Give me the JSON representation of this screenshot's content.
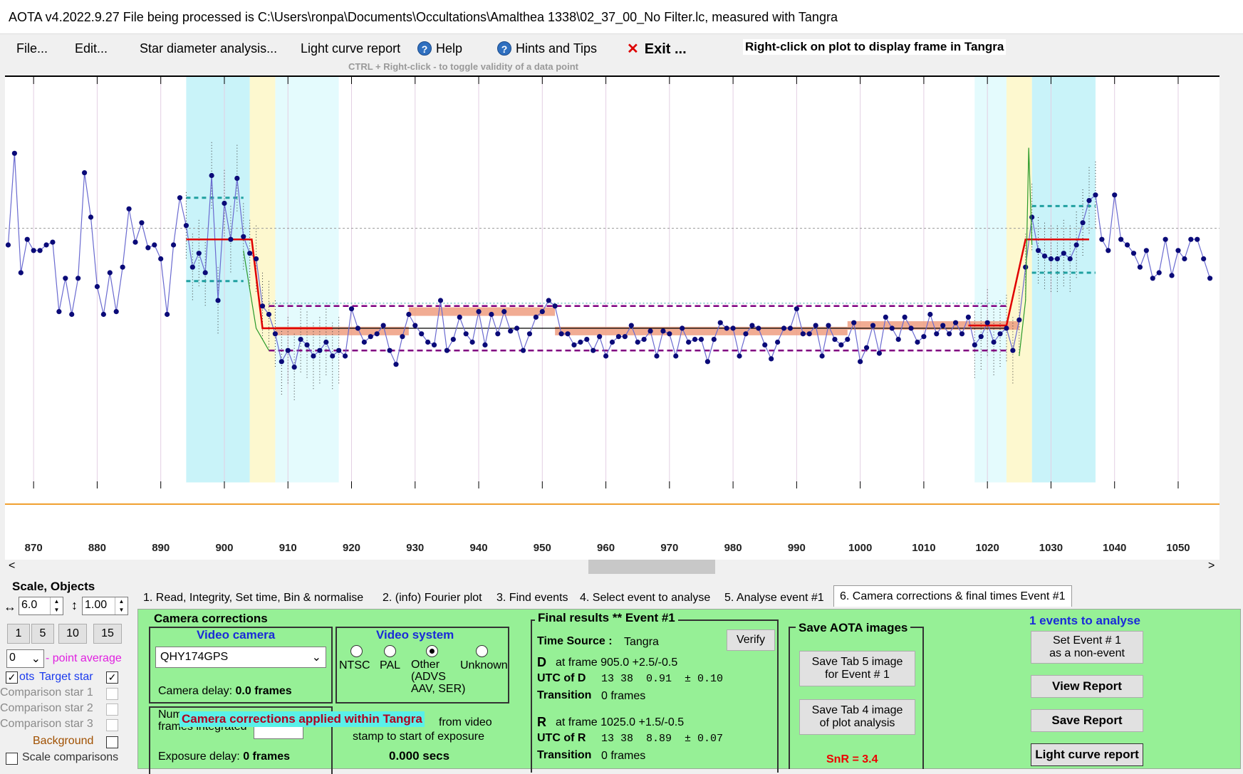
{
  "title": "AOTA v4.2022.9.27     File being processed is C:\\Users\\ronpa\\Documents\\Occultations\\Amalthea 1338\\02_37_00_No Filter.lc, measured with Tangra",
  "menu": {
    "file": "File...",
    "edit": "Edit...",
    "star_diameter": "Star diameter analysis...",
    "light_curve_report": "Light curve report",
    "help": "Help",
    "hints": "Hints and Tips",
    "exit": "Exit ...",
    "right_click_hint": "Right-click on plot to display frame in Tangra",
    "ctrl_hint": "CTRL + Right-click  -  to toggle validity of a data point"
  },
  "plot": {
    "x_ticks": [
      870,
      880,
      890,
      900,
      910,
      920,
      930,
      940,
      950,
      960,
      970,
      980,
      990,
      1000,
      1010,
      1020,
      1030,
      1040,
      1050
    ],
    "x_min": 865.5,
    "x_max": 1056.5,
    "y_min": 0,
    "y_max": 100,
    "cyan_bands": [
      [
        894,
        904
      ],
      [
        908,
        918
      ],
      [
        1018,
        1023
      ],
      [
        1027,
        1037
      ]
    ],
    "yellow_bands": [
      [
        904,
        908
      ],
      [
        1023,
        1027
      ]
    ],
    "baseline_level": 62,
    "event_level": 30,
    "orange_line_level": -40,
    "points": [
      [
        866,
        60
      ],
      [
        867,
        93
      ],
      [
        868,
        50
      ],
      [
        869,
        62
      ],
      [
        870,
        58
      ],
      [
        871,
        58
      ],
      [
        872,
        60
      ],
      [
        873,
        61
      ],
      [
        874,
        36
      ],
      [
        875,
        48
      ],
      [
        876,
        35
      ],
      [
        877,
        48
      ],
      [
        878,
        86
      ],
      [
        879,
        70
      ],
      [
        880,
        45
      ],
      [
        881,
        35
      ],
      [
        882,
        50
      ],
      [
        883,
        36
      ],
      [
        884,
        52
      ],
      [
        885,
        73
      ],
      [
        886,
        61
      ],
      [
        887,
        68
      ],
      [
        888,
        59
      ],
      [
        889,
        60
      ],
      [
        890,
        55
      ],
      [
        891,
        35
      ],
      [
        892,
        60
      ],
      [
        893,
        77
      ],
      [
        894,
        67
      ],
      [
        895,
        52
      ],
      [
        896,
        57
      ],
      [
        897,
        50
      ],
      [
        898,
        85
      ],
      [
        899,
        40
      ],
      [
        900,
        75
      ],
      [
        901,
        62
      ],
      [
        902,
        84
      ],
      [
        903,
        63
      ],
      [
        904,
        57
      ],
      [
        905,
        55
      ],
      [
        906,
        38
      ],
      [
        907,
        35
      ],
      [
        908,
        28
      ],
      [
        909,
        18
      ],
      [
        910,
        22
      ],
      [
        911,
        16
      ],
      [
        912,
        26
      ],
      [
        913,
        24
      ],
      [
        914,
        20
      ],
      [
        915,
        22
      ],
      [
        916,
        25
      ],
      [
        917,
        20
      ],
      [
        918,
        22
      ],
      [
        919,
        20
      ],
      [
        920,
        37
      ],
      [
        921,
        30
      ],
      [
        922,
        25
      ],
      [
        923,
        27
      ],
      [
        924,
        28
      ],
      [
        925,
        31
      ],
      [
        926,
        22
      ],
      [
        927,
        17
      ],
      [
        928,
        27
      ],
      [
        929,
        35
      ],
      [
        930,
        31
      ],
      [
        931,
        28
      ],
      [
        932,
        25
      ],
      [
        933,
        24
      ],
      [
        934,
        40
      ],
      [
        935,
        22
      ],
      [
        936,
        26
      ],
      [
        937,
        34
      ],
      [
        938,
        28
      ],
      [
        939,
        25
      ],
      [
        940,
        36
      ],
      [
        941,
        24
      ],
      [
        942,
        35
      ],
      [
        943,
        28
      ],
      [
        944,
        36
      ],
      [
        945,
        29
      ],
      [
        946,
        30
      ],
      [
        947,
        22
      ],
      [
        948,
        28
      ],
      [
        949,
        34
      ],
      [
        950,
        36
      ],
      [
        951,
        40
      ],
      [
        952,
        38
      ],
      [
        953,
        28
      ],
      [
        954,
        28
      ],
      [
        955,
        24
      ],
      [
        956,
        25
      ],
      [
        957,
        26
      ],
      [
        958,
        22
      ],
      [
        959,
        27
      ],
      [
        960,
        20
      ],
      [
        961,
        25
      ],
      [
        962,
        27
      ],
      [
        963,
        27
      ],
      [
        964,
        31
      ],
      [
        965,
        25
      ],
      [
        966,
        26
      ],
      [
        967,
        29
      ],
      [
        968,
        20
      ],
      [
        969,
        29
      ],
      [
        970,
        28
      ],
      [
        971,
        20
      ],
      [
        972,
        30
      ],
      [
        973,
        25
      ],
      [
        974,
        26
      ],
      [
        975,
        26
      ],
      [
        976,
        18
      ],
      [
        977,
        26
      ],
      [
        978,
        32
      ],
      [
        979,
        30
      ],
      [
        980,
        30
      ],
      [
        981,
        20
      ],
      [
        982,
        28
      ],
      [
        983,
        31
      ],
      [
        984,
        30
      ],
      [
        985,
        24
      ],
      [
        986,
        19
      ],
      [
        987,
        25
      ],
      [
        988,
        30
      ],
      [
        989,
        30
      ],
      [
        990,
        37
      ],
      [
        991,
        28
      ],
      [
        992,
        28
      ],
      [
        993,
        31
      ],
      [
        994,
        20
      ],
      [
        995,
        31
      ],
      [
        996,
        26
      ],
      [
        997,
        24
      ],
      [
        998,
        26
      ],
      [
        999,
        32
      ],
      [
        1000,
        18
      ],
      [
        1001,
        23
      ],
      [
        1002,
        31
      ],
      [
        1003,
        21
      ],
      [
        1004,
        34
      ],
      [
        1005,
        30
      ],
      [
        1006,
        26
      ],
      [
        1007,
        34
      ],
      [
        1008,
        30
      ],
      [
        1009,
        25
      ],
      [
        1010,
        27
      ],
      [
        1011,
        35
      ],
      [
        1012,
        28
      ],
      [
        1013,
        31
      ],
      [
        1014,
        28
      ],
      [
        1015,
        32
      ],
      [
        1016,
        28
      ],
      [
        1017,
        34
      ],
      [
        1018,
        24
      ],
      [
        1019,
        27
      ],
      [
        1020,
        32
      ],
      [
        1021,
        25
      ],
      [
        1022,
        28
      ],
      [
        1023,
        30
      ],
      [
        1024,
        22
      ],
      [
        1025,
        33
      ],
      [
        1026,
        52
      ],
      [
        1027,
        70
      ],
      [
        1028,
        58
      ],
      [
        1029,
        56
      ],
      [
        1030,
        55
      ],
      [
        1031,
        55
      ],
      [
        1032,
        57
      ],
      [
        1033,
        55
      ],
      [
        1034,
        60
      ],
      [
        1035,
        68
      ],
      [
        1036,
        76
      ],
      [
        1037,
        78
      ],
      [
        1038,
        62
      ],
      [
        1039,
        58
      ],
      [
        1040,
        78
      ],
      [
        1041,
        62
      ],
      [
        1042,
        60
      ],
      [
        1043,
        57
      ],
      [
        1044,
        52
      ],
      [
        1045,
        58
      ],
      [
        1046,
        48
      ],
      [
        1047,
        50
      ],
      [
        1048,
        62
      ],
      [
        1049,
        49
      ],
      [
        1050,
        58
      ],
      [
        1051,
        55
      ],
      [
        1052,
        62
      ],
      [
        1053,
        62
      ],
      [
        1054,
        55
      ],
      [
        1055,
        48
      ]
    ],
    "model_segments": [
      [
        894,
        904,
        62
      ],
      [
        904,
        908,
        62
      ],
      [
        908,
        926,
        30
      ],
      [
        1022,
        1026,
        30
      ],
      [
        1026,
        1037,
        62
      ]
    ]
  },
  "tabs": [
    "1. Read, Integrity, Set time, Bin & normalise",
    "2. (info)  Fourier plot",
    "3. Find events",
    "4. Select event to analyse",
    "5. Analyse event #1",
    "6. Camera corrections & final times Event #1"
  ],
  "left_panel": {
    "heading": "Scale,  Objects",
    "h_scale": "6.0",
    "v_scale": "1.00",
    "buttons": [
      "1",
      "5",
      "10",
      "15"
    ],
    "point_avg_value": "0",
    "point_avg_label": "- point average",
    "plots_label": "ots",
    "target_star": "Target star",
    "comparison1": "Comparison star 1",
    "comparison2": "Comparison star 2",
    "comparison3": "Comparison star 3",
    "background": "Background",
    "scale_comparisons": "Scale comparisons"
  },
  "camera": {
    "title": "Camera corrections",
    "video_camera_title": "Video camera",
    "camera_select": "QHY174GPS",
    "camera_delay_label": "Camera delay:",
    "camera_delay_value": "0.0 frames",
    "video_system_title": "Video system",
    "ntsc": "NTSC",
    "pal": "PAL",
    "other": "Other\n(ADVS\nAAV, SER)",
    "unknown": "Unknown",
    "num_frames_label": "Num\nframes integrated",
    "tangra_banner": "Camera corrections applied within Tangra",
    "from_video": "from video",
    "stamp_label": "stamp to start of exposure",
    "stamp_value": "0.000 secs",
    "exposure_delay_label": "Exposure delay:",
    "exposure_delay_value": "0 frames"
  },
  "final": {
    "title": "Final results  **  Event #1",
    "time_source_label": "Time Source :",
    "time_source_value": "Tangra",
    "verify": "Verify",
    "d_label": "D",
    "d_frame": "at frame 905.0  +2.5/-0.5",
    "utc_d_label": "UTC of D",
    "utc_d_value": "13 38  0.91  ± 0.10",
    "transition_label": "Transition",
    "transition_d": "0 frames",
    "r_label": "R",
    "r_frame": "at frame 1025.0  +1.5/-0.5",
    "utc_r_label": "UTC of R",
    "utc_r_value": "13 38  8.89  ± 0.07",
    "transition_r": "0 frames"
  },
  "save": {
    "title": "Save AOTA images",
    "tab5": "Save Tab 5 image\nfor Event # 1",
    "tab4": "Save Tab 4 image\nof plot analysis",
    "snr": "SnR = 3.4"
  },
  "right": {
    "events_label": "1  events to analyse",
    "non_event": "Set Event # 1\nas a non-event",
    "view_report": "View Report",
    "save_report": "Save Report",
    "lc_report": "Light curve report"
  }
}
